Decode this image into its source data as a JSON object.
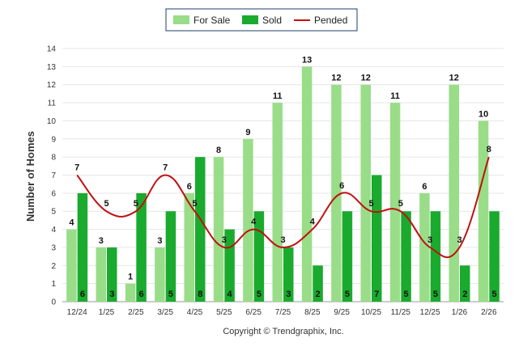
{
  "chart_data": {
    "type": "bar",
    "title": "",
    "xlabel": "",
    "ylabel": "Number of Homes",
    "ylim": [
      0,
      14
    ],
    "yticks": [
      "0",
      "1",
      "2",
      "3",
      "4",
      "5",
      "6",
      "7",
      "8",
      "9",
      "10",
      "11",
      "12",
      "13",
      "14"
    ],
    "categories": [
      "12/24",
      "1/25",
      "2/25",
      "3/25",
      "4/25",
      "5/25",
      "6/25",
      "7/25",
      "8/25",
      "9/25",
      "10/25",
      "11/25",
      "12/25",
      "1/26",
      "2/26"
    ],
    "series": [
      {
        "name": "For Sale",
        "type": "bar",
        "color": "#99dd88",
        "values": [
          4,
          3,
          1,
          3,
          6,
          8,
          9,
          11,
          13,
          12,
          12,
          11,
          6,
          12,
          10
        ],
        "labels": [
          "4",
          "3",
          "1",
          "3",
          "6",
          "8",
          "9",
          "11",
          "13",
          "12",
          "12",
          "11",
          "6",
          "12",
          "10"
        ]
      },
      {
        "name": "Sold",
        "type": "bar",
        "color": "#1aaa2e",
        "values": [
          6,
          3,
          6,
          5,
          8,
          4,
          5,
          3,
          2,
          5,
          7,
          5,
          5,
          2,
          5
        ],
        "labels": [
          "6",
          "3",
          "6",
          "5",
          "8",
          "4",
          "5",
          "3",
          "2",
          "5",
          "7",
          "5",
          "5",
          "2",
          "5"
        ]
      },
      {
        "name": "Pended",
        "type": "line",
        "color": "#c01010",
        "values": [
          7,
          5,
          5,
          7,
          5,
          3,
          4,
          3,
          4,
          6,
          5,
          5,
          3,
          3,
          8
        ],
        "labels": [
          "7",
          "5",
          "5",
          "7",
          "5",
          "3",
          "4",
          "3",
          "4",
          "6",
          "5",
          "5",
          "3",
          "3",
          "8"
        ]
      }
    ],
    "legend": [
      "For Sale",
      "Sold",
      "Pended"
    ],
    "legend_position": "top-center",
    "grid": true
  },
  "footer": {
    "copyright": "Copyright © Trendgraphix, Inc."
  }
}
